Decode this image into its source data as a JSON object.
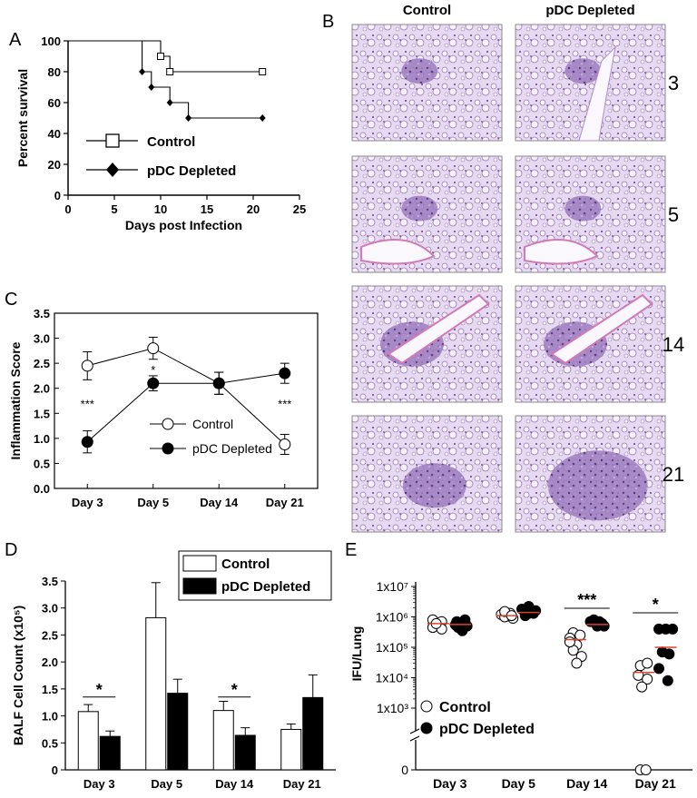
{
  "panels": {
    "A": "A",
    "B": "B",
    "C": "C",
    "D": "D",
    "E": "E"
  },
  "colors": {
    "mean_line": "#e0402a",
    "histology_base": "#c9b6d9",
    "histology_stain": "#7a4b9a"
  },
  "chart_data": [
    {
      "panel": "A",
      "type": "line",
      "subtype": "kaplan-meier",
      "xlabel": "Days post Infection",
      "ylabel": "Percent survival",
      "xlim": [
        0,
        25
      ],
      "ylim": [
        0,
        100
      ],
      "xticks": [
        "0",
        "5",
        "10",
        "15",
        "20",
        "25"
      ],
      "yticks": [
        "0",
        "20",
        "40",
        "60",
        "80",
        "100"
      ],
      "legend_position": "bottom-left",
      "series": [
        {
          "name": "Control",
          "marker": "open-square",
          "steps": [
            [
              0,
              100
            ],
            [
              10,
              100
            ],
            [
              10,
              90
            ],
            [
              11,
              90
            ],
            [
              11,
              80
            ],
            [
              21,
              80
            ]
          ],
          "markers": [
            [
              10,
              90
            ],
            [
              11,
              80
            ],
            [
              21,
              80
            ]
          ]
        },
        {
          "name": "pDC Depleted",
          "marker": "filled-diamond",
          "steps": [
            [
              0,
              100
            ],
            [
              8,
              100
            ],
            [
              8,
              80
            ],
            [
              9,
              80
            ],
            [
              9,
              70
            ],
            [
              11,
              70
            ],
            [
              11,
              60
            ],
            [
              13,
              60
            ],
            [
              13,
              50
            ],
            [
              21,
              50
            ]
          ],
          "markers": [
            [
              8,
              80
            ],
            [
              9,
              70
            ],
            [
              11,
              60
            ],
            [
              13,
              50
            ],
            [
              21,
              50
            ]
          ]
        }
      ]
    },
    {
      "panel": "C",
      "type": "line",
      "ylabel": "Inflammation Score",
      "categories": [
        "Day 3",
        "Day 5",
        "Day 14",
        "Day 21"
      ],
      "ylim": [
        0,
        3.5
      ],
      "yticks": [
        "0.0",
        "0.5",
        "1.0",
        "1.5",
        "2.0",
        "2.5",
        "3.0",
        "3.5"
      ],
      "series": [
        {
          "name": "Control",
          "marker": "open-circle",
          "values": [
            2.45,
            2.8,
            2.1,
            0.88
          ],
          "errors": [
            0.28,
            0.22,
            0.22,
            0.2
          ]
        },
        {
          "name": "pDC Depleted",
          "marker": "filled-circle",
          "values": [
            0.93,
            2.1,
            2.1,
            2.3
          ],
          "errors": [
            0.22,
            0.15,
            0.22,
            0.2
          ]
        }
      ],
      "annotations": [
        {
          "text": "***",
          "category": "Day 3",
          "y": 1.7
        },
        {
          "text": "*",
          "category": "Day 5",
          "y": 2.38
        },
        {
          "text": "***",
          "category": "Day 21",
          "y": 1.7
        }
      ],
      "legend_position": "center-right"
    },
    {
      "panel": "D",
      "type": "bar",
      "ylabel": "BALF Cell Count (x10⁵)",
      "categories": [
        "Day 3",
        "Day 5",
        "Day 14",
        "Day 21"
      ],
      "ylim": [
        0,
        3.5
      ],
      "yticks": [
        "0",
        "0.5",
        "1.0",
        "1.5",
        "2.0",
        "2.5",
        "3.0",
        "3.5"
      ],
      "series": [
        {
          "name": "Control",
          "fill": "open",
          "values": [
            1.08,
            2.82,
            1.1,
            0.75
          ],
          "errors": [
            0.13,
            0.65,
            0.17,
            0.1
          ]
        },
        {
          "name": "pDC Depleted",
          "fill": "black",
          "values": [
            0.62,
            1.42,
            0.64,
            1.34
          ],
          "errors": [
            0.1,
            0.26,
            0.14,
            0.42
          ]
        }
      ],
      "annotations": [
        {
          "text": "*",
          "category": "Day 3",
          "y": 1.35
        },
        {
          "text": "*",
          "category": "Day 14",
          "y": 1.35
        }
      ],
      "legend_position": "top-right"
    },
    {
      "panel": "E",
      "type": "scatter",
      "ylabel": "IFU/Lung",
      "yscale": "log",
      "categories": [
        "Day 3",
        "Day 5",
        "Day 14",
        "Day 21"
      ],
      "yticks": [
        "1x10³",
        "1x10⁴",
        "1x10⁵",
        "1x10⁶",
        "1x10⁷"
      ],
      "zero_tick": "0",
      "series": [
        {
          "name": "Control",
          "marker": "open-circle",
          "points": [
            [
              [
                -0.25,
                800000
              ],
              [
                -0.12,
                700000
              ],
              [
                -0.25,
                450000
              ],
              [
                -0.12,
                400000
              ],
              [
                -0.2,
                600000
              ]
            ],
            [
              [
                -0.25,
                1200000
              ],
              [
                -0.12,
                1300000
              ],
              [
                -0.2,
                1000000
              ],
              [
                -0.08,
                900000
              ],
              [
                -0.2,
                1500000
              ],
              [
                -0.1,
                1100000
              ]
            ],
            [
              [
                -0.2,
                300000
              ],
              [
                -0.1,
                250000
              ],
              [
                -0.25,
                200000
              ],
              [
                -0.15,
                120000
              ],
              [
                -0.2,
                80000
              ],
              [
                -0.08,
                50000
              ],
              [
                -0.15,
                30000
              ],
              [
                -0.25,
                150000
              ]
            ],
            [
              [
                -0.22,
                25000
              ],
              [
                -0.12,
                30000
              ],
              [
                -0.25,
                12000
              ],
              [
                -0.12,
                9000
              ],
              [
                -0.2,
                5000
              ],
              [
                -0.22,
                0
              ],
              [
                -0.14,
                0
              ]
            ]
          ],
          "means": [
            600000,
            1100000,
            180000,
            15000
          ]
        },
        {
          "name": "pDC Depleted",
          "marker": "filled-circle",
          "points": [
            [
              [
                0.1,
                700000
              ],
              [
                0.22,
                650000
              ],
              [
                0.12,
                450000
              ],
              [
                0.25,
                500000
              ],
              [
                0.18,
                350000
              ],
              [
                0.08,
                550000
              ],
              [
                0.22,
                800000
              ]
            ],
            [
              [
                0.05,
                1800000
              ],
              [
                0.15,
                2200000
              ],
              [
                0.22,
                1300000
              ],
              [
                0.1,
                1100000
              ],
              [
                0.25,
                1600000
              ],
              [
                0.15,
                1300000
              ]
            ],
            [
              [
                0.05,
                700000
              ],
              [
                0.15,
                500000
              ],
              [
                0.22,
                600000
              ],
              [
                0.1,
                800000
              ],
              [
                0.25,
                500000
              ],
              [
                0.18,
                700000
              ]
            ],
            [
              [
                0.05,
                400000
              ],
              [
                0.15,
                400000
              ],
              [
                0.25,
                400000
              ],
              [
                0.1,
                70000
              ],
              [
                0.2,
                60000
              ],
              [
                0.05,
                20000
              ],
              [
                0.18,
                8000
              ]
            ]
          ],
          "means": [
            560000,
            1400000,
            560000,
            100000
          ]
        }
      ],
      "annotations": [
        {
          "text": "***",
          "category": "Day 14"
        },
        {
          "text": "*",
          "category": "Day 21"
        }
      ],
      "legend_position": "bottom-left"
    }
  ],
  "histology": {
    "columns": [
      "Control",
      "pDC Depleted"
    ],
    "rows": [
      "3",
      "5",
      "14",
      "21"
    ]
  }
}
